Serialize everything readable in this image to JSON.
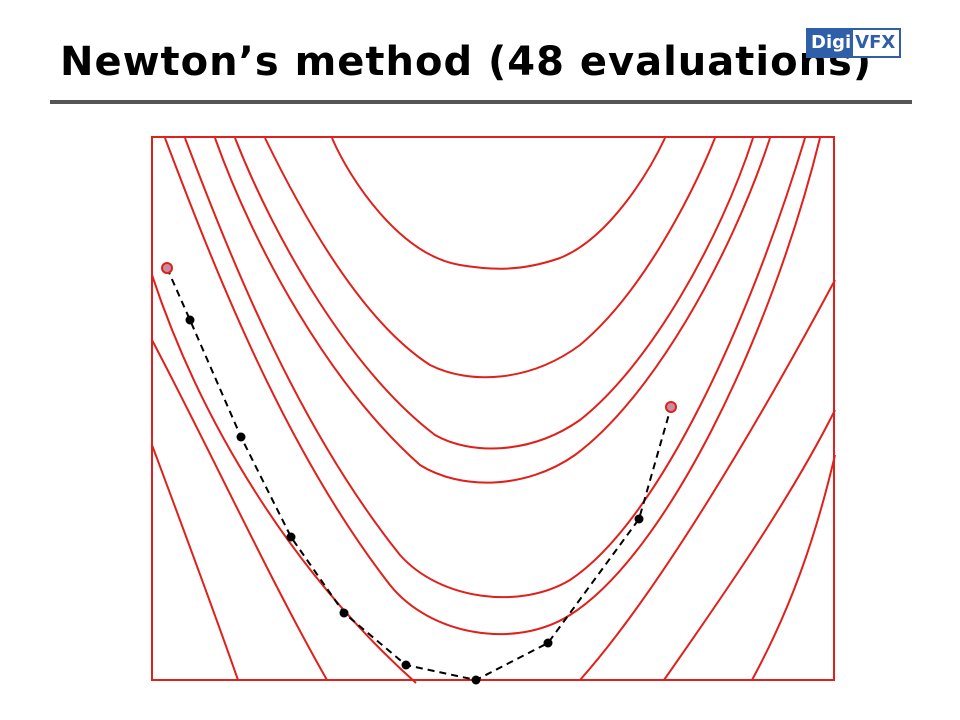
{
  "slide": {
    "title": "Newton’s method (48 evaluations)"
  },
  "logo": {
    "part1": "Digi",
    "part2": "VFX"
  },
  "colors": {
    "contour": "#e0201b",
    "path": "#000000",
    "endpoint_fill": "#c88ca0",
    "endpoint_stroke": "#e0201b",
    "logo": "#2e5fa8"
  }
}
